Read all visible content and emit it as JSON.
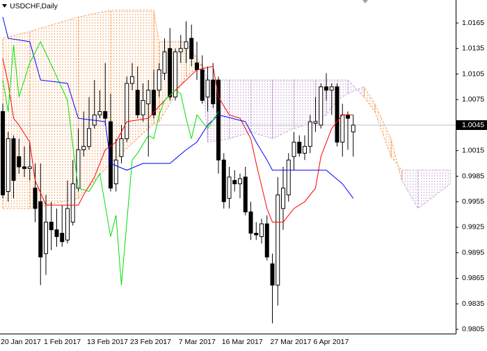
{
  "chart_data": {
    "type": "candlestick",
    "title": "USDCHF,Daily",
    "categories": [
      "20 Jan 2017",
      null,
      null,
      null,
      null,
      null,
      null,
      null,
      "1 Feb 2017",
      null,
      null,
      null,
      null,
      null,
      null,
      null,
      "13 Feb 2017",
      null,
      null,
      null,
      null,
      null,
      null,
      null,
      "23 Feb 2017",
      null,
      null,
      null,
      null,
      null,
      null,
      null,
      null,
      "7 Mar 2017",
      null,
      null,
      null,
      null,
      null,
      null,
      null,
      "16 Mar 2017",
      null,
      null,
      null,
      null,
      null,
      null,
      null,
      null,
      "27 Mar 2017",
      null,
      null,
      null,
      null,
      null,
      null,
      null,
      "6 Apr 2017",
      null,
      null,
      null,
      null,
      null,
      null,
      null
    ],
    "open": [
      1.0061,
      0.9967,
      1.0029,
      1.0008,
      0.9996,
      0.9994,
      0.9971,
      0.9955,
      0.9894,
      0.9931,
      0.9922,
      0.9918,
      0.991,
      0.9931,
      0.9971,
      1.0016,
      1.002,
      1.0045,
      1.0057,
      1.0061,
      1.0049,
      0.9976,
      1.0008,
      1.0029,
      1.0094,
      1.0086,
      1.0057,
      1.007,
      1.0086,
      1.0086,
      1.0106,
      1.0135,
      1.0078,
      1.0131,
      1.0135,
      1.0147,
      1.0118,
      1.011,
      1.0078,
      1.0098,
      1.0098,
      1.0004,
      0.9959,
      0.998,
      0.9976,
      0.9984,
      0.9943,
      0.9918,
      0.9914,
      0.9929,
      0.9882,
      0.9857,
      0.9947,
      0.9963,
      1.0008,
      1.0025,
      1.0012,
      1.002,
      1.0047,
      1.0045,
      1.009,
      1.0086,
      1.009,
      1.0025,
      1.0057,
      1.0037
    ],
    "high": [
      1.007,
      1.0037,
      1.0033,
      1.0029,
      1.002,
      1.0025,
      1.0,
      1.0,
      0.9963,
      0.9955,
      0.9947,
      0.9951,
      0.998,
      1.0004,
      1.0041,
      1.0061,
      1.0078,
      1.0098,
      1.0086,
      1.0118,
      1.0082,
      1.0029,
      1.0045,
      1.0102,
      1.0118,
      1.0114,
      1.0094,
      1.0098,
      1.011,
      1.0118,
      1.0147,
      1.0159,
      1.0135,
      1.0151,
      1.0167,
      1.0163,
      1.0143,
      1.0127,
      1.0114,
      1.0118,
      1.0102,
      1.0012,
      0.9996,
      0.9992,
      0.9988,
      0.9996,
      0.9955,
      0.9931,
      0.9935,
      0.9939,
      0.9894,
      0.9984,
      0.9996,
      1.0012,
      1.0037,
      1.0033,
      1.0033,
      1.0057,
      1.0078,
      1.0094,
      1.0106,
      1.0094,
      1.0094,
      1.007,
      1.0061,
      1.0057
    ],
    "low": [
      0.9959,
      0.9955,
      0.9959,
      0.9988,
      0.9984,
      0.998,
      0.9931,
      0.9857,
      0.9869,
      0.9898,
      0.9902,
      0.9902,
      0.9906,
      0.9927,
      0.9967,
      1.0008,
      1.0016,
      1.0041,
      1.0053,
      1.0045,
      0.9967,
      0.9967,
      1.0,
      1.0025,
      1.0086,
      1.0053,
      1.0049,
      1.0008,
      1.0053,
      1.0078,
      1.0098,
      1.0074,
      1.0074,
      1.0118,
      1.0118,
      1.0114,
      1.0098,
      1.007,
      1.0061,
      1.0065,
      0.9988,
      0.9947,
      0.9947,
      0.9967,
      0.9959,
      0.9939,
      0.991,
      0.991,
      0.9906,
      0.9886,
      0.9812,
      0.9833,
      0.9922,
      0.9955,
      0.9992,
      1.0008,
      1.0004,
      1.0012,
      1.0037,
      1.0041,
      1.0074,
      1.0057,
      1.002,
      1.0008,
      1.0016,
      1.0008
    ],
    "close": [
      0.9963,
      1.0029,
      0.998,
      0.9996,
      0.9994,
      0.9996,
      0.9947,
      0.989,
      0.9931,
      0.9922,
      0.9914,
      0.9908,
      0.9947,
      0.9976,
      1.0016,
      1.002,
      1.0041,
      1.0057,
      1.0061,
      1.0053,
      0.9971,
      1.0004,
      1.0029,
      1.0094,
      1.0102,
      1.0057,
      1.0074,
      1.0086,
      1.0057,
      1.011,
      1.0131,
      1.0078,
      1.0131,
      1.0135,
      1.0143,
      1.0123,
      1.011,
      1.0074,
      1.0098,
      1.007,
      1.0004,
      0.9955,
      0.9984,
      0.9976,
      0.9982,
      0.9943,
      0.9918,
      0.9916,
      0.9929,
      0.989,
      0.9857,
      0.9963,
      0.9971,
      1.0004,
      1.0025,
      1.0012,
      1.002,
      1.0049,
      1.0049,
      1.009,
      1.0086,
      1.009,
      1.0025,
      1.0057,
      1.0053,
      1.0045
    ],
    "up_color": "#ffffff",
    "down_color": "#000000",
    "ylim": [
      0.98,
      1.0192
    ],
    "yticks": [
      1.0165,
      1.0135,
      1.0105,
      1.0075,
      1.0015,
      0.9985,
      0.9955,
      0.9925,
      0.9895,
      0.9865,
      0.9835,
      0.9805
    ],
    "last_price": 1.0045,
    "grid": false,
    "cloud": {
      "x": [
        0,
        5,
        14,
        20,
        28,
        29,
        34,
        37,
        38,
        42,
        46,
        50,
        54,
        58,
        60,
        62,
        64,
        67,
        69,
        72,
        74,
        77,
        83
      ],
      "span_a": [
        0.9947,
        0.9947,
        0.9959,
        1.0,
        1.0047,
        1.0049,
        1.0102,
        1.0117,
        1.0098,
        1.0098,
        1.0098,
        1.0098,
        1.0098,
        1.0098,
        1.0098,
        1.0098,
        1.0098,
        1.0078,
        1.0061,
        1.0008,
        0.9992,
        0.9992,
        0.9992
      ],
      "span_b": [
        1.0147,
        1.0155,
        1.0172,
        1.018,
        1.018,
        1.0143,
        1.0143,
        1.0114,
        1.0025,
        1.0029,
        1.0037,
        1.0029,
        1.0041,
        1.0049,
        1.0057,
        1.0074,
        1.0082,
        1.009,
        1.007,
        1.0029,
        0.998,
        0.9947,
        0.9976
      ],
      "down_color": "#f4a460",
      "up_color": "#c8a8d8"
    },
    "series": [
      {
        "color": "#ff0000",
        "x": [
          0,
          1,
          2,
          3,
          5,
          6,
          8,
          14,
          15,
          17,
          19,
          21,
          23,
          27,
          30,
          32,
          34,
          36,
          39,
          40,
          42,
          44,
          46,
          47,
          49,
          50,
          52,
          54,
          56,
          58,
          59,
          61,
          63,
          65
        ],
        "values": [
          1.0123,
          1.0094,
          1.0053,
          1.0045,
          1.0025,
          0.998,
          0.9951,
          0.9951,
          0.9963,
          0.9984,
          1.0016,
          1.0025,
          1.0049,
          1.0053,
          1.0074,
          1.0086,
          1.0098,
          1.011,
          1.0114,
          1.0078,
          1.0057,
          1.0053,
          1.0029,
          1.0,
          0.9947,
          0.9931,
          0.9931,
          0.9947,
          0.9955,
          0.9971,
          1.0008,
          1.0041,
          1.0057,
          1.0057
        ]
      },
      {
        "color": "#0000ff",
        "x": [
          0,
          1,
          5,
          7,
          12,
          14,
          19,
          20,
          23,
          26,
          31,
          34,
          36,
          38,
          40,
          45,
          47,
          49,
          50,
          60,
          63,
          65
        ],
        "values": [
          1.0172,
          1.0147,
          1.0143,
          1.0098,
          1.0094,
          1.0053,
          1.0049,
          1.0,
          0.9992,
          1.0,
          1.0,
          1.0016,
          1.0025,
          1.0045,
          1.0057,
          1.0049,
          1.0025,
          1.0004,
          0.9992,
          0.9992,
          0.9976,
          0.9959
        ]
      },
      {
        "color": "#00e000",
        "x": [
          0,
          1,
          2,
          3,
          5,
          7,
          10,
          12,
          13,
          14,
          16,
          18,
          20,
          21,
          22,
          24,
          25,
          27,
          28,
          29,
          30,
          32,
          33,
          34,
          35,
          36,
          38,
          40
        ],
        "values": [
          1.0098,
          1.0061,
          1.0139,
          1.0078,
          1.0118,
          1.0143,
          1.0102,
          1.0074,
          1.002,
          0.9971,
          0.9967,
          0.9988,
          0.9914,
          0.9939,
          0.9857,
          1.0004,
          1.0012,
          1.0033,
          1.0029,
          1.0057,
          1.0074,
          1.0086,
          1.0082,
          1.0053,
          1.0029,
          1.0057,
          1.0041,
          1.0061
        ]
      }
    ]
  }
}
